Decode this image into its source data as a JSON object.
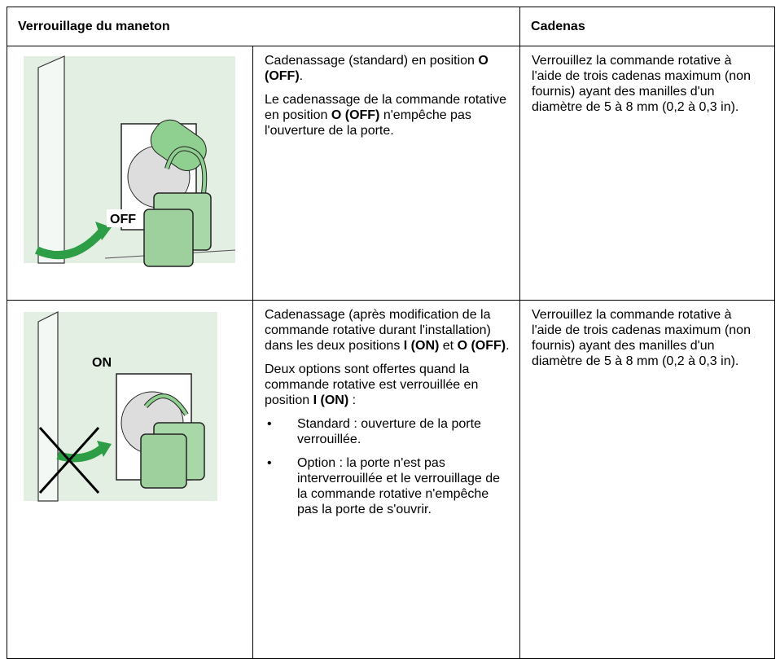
{
  "table": {
    "headers": [
      "Verrouillage du maneton",
      "Cadenas"
    ],
    "rows": [
      {
        "image_label": "OFF",
        "description": [
          [
            "Cadenassage (standard) en position ",
            {
              "text": "O (OFF)",
              "bold": true
            },
            "."
          ],
          [
            "Le cadenassage de la commande rotative en position ",
            {
              "text": "O (OFF)",
              "bold": true
            },
            " n'empêche pas l'ouverture de la porte."
          ]
        ],
        "bullets": [],
        "padlock": "Verrouillez la commande rotative à l'aide de trois cadenas maximum (non fournis) ayant des manilles d'un diamètre de 5 à 8 mm (0,2 à 0,3 in)."
      },
      {
        "image_label": "ON",
        "description": [
          [
            "Cadenassage (après modification de la commande rotative durant l'installation) dans les deux positions ",
            {
              "text": "I (ON)",
              "bold": true
            },
            " et ",
            {
              "text": "O (OFF)",
              "bold": true
            },
            "."
          ],
          [
            "Deux options sont offertes quand la commande rotative est verrouillée en position ",
            {
              "text": "I (ON)",
              "bold": true
            },
            " :"
          ]
        ],
        "bullets": [
          "Standard : ouverture de la porte verrouillée.",
          "Option : la porte n'est pas interverrouillée et le verrouillage de la commande rotative n'empêche pas la porte de s'ouvrir."
        ],
        "padlock": "Verrouillez la commande rotative à l'aide de trois cadenas maximum (non fournis) ayant des manilles d'un diamètre de 5 à 8 mm (0,2 à 0,3 in)."
      }
    ]
  }
}
